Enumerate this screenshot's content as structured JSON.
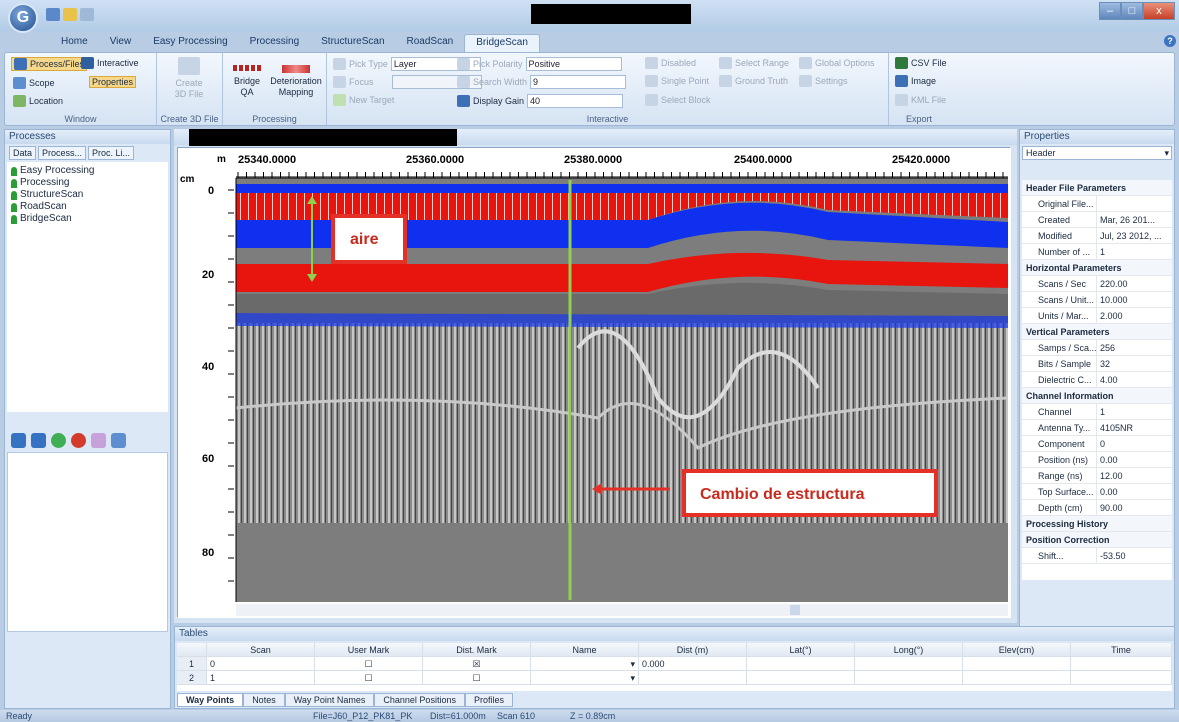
{
  "titlebar": {
    "app_icon": "G",
    "win_min": "–",
    "win_max": "□",
    "win_close": "x"
  },
  "ribbon_tabs": [
    "Home",
    "View",
    "Easy Processing",
    "Processing",
    "StructureScan",
    "RoadScan",
    "BridgeScan"
  ],
  "help": "?",
  "window_group": {
    "label": "Window",
    "process_files": "Process/Files",
    "interactive": "Interactive",
    "scope": "Scope",
    "properties": "Properties",
    "location": "Location"
  },
  "create3d_group": {
    "label": "Create 3D File",
    "button": "Create\n3D File"
  },
  "processing_group": {
    "label": "Processing",
    "bridge_qa": "Bridge\nQA",
    "deterioration": "Deterioration\nMapping"
  },
  "interactive_group": {
    "label": "Interactive",
    "pick_type": "Pick Type",
    "pick_type_val": "Layer",
    "focus": "Focus",
    "new_target": "New Target",
    "pick_polarity": "Pick Polarity",
    "pick_polarity_val": "Positive",
    "search_width": "Search Width",
    "search_width_val": "9",
    "display_gain": "Display Gain",
    "display_gain_val": "40",
    "disabled": "Disabled",
    "single_point": "Single Point",
    "select_block": "Select Block",
    "select_range": "Select Range",
    "ground_truth": "Ground Truth",
    "global_options": "Global Options",
    "settings": "Settings"
  },
  "export_group": {
    "label": "Export",
    "csv": "CSV File",
    "image": "Image",
    "kml": "KML File"
  },
  "processes_panel": {
    "title": "Processes",
    "tabs": [
      "Data",
      "Process...",
      "Proc. Li..."
    ],
    "tree": [
      "Easy Processing",
      "Processing",
      "StructureScan",
      "RoadScan",
      "BridgeScan"
    ]
  },
  "radargram": {
    "x_unit": "m",
    "y_unit": "cm",
    "x_ticks": [
      "25340.0000",
      "25360.0000",
      "25380.0000",
      "25400.0000",
      "25420.0000"
    ],
    "y_ticks": [
      "0",
      "20",
      "40",
      "60",
      "80"
    ],
    "annotation_air": "aire",
    "annotation_change": "Cambio de estructura",
    "colors": {
      "red": "#e8150f",
      "blue": "#1030f0",
      "green": "#8fd14f",
      "box": "#e53027"
    }
  },
  "properties_panel": {
    "title": "Properties",
    "selector": "Header",
    "sections": [
      {
        "title": "Header File Parameters",
        "rows": [
          [
            "Original File...",
            ""
          ],
          [
            "Created",
            "Mar, 26 201..."
          ],
          [
            "Modified",
            "Jul, 23 2012, ..."
          ],
          [
            "Number of ...",
            "1"
          ]
        ]
      },
      {
        "title": "Horizontal Parameters",
        "rows": [
          [
            "Scans / Sec",
            "220.00"
          ],
          [
            "Scans / Unit...",
            "10.000"
          ],
          [
            "Units / Mar...",
            "2.000"
          ]
        ]
      },
      {
        "title": "Vertical Parameters",
        "rows": [
          [
            "Samps / Sca...",
            "256"
          ],
          [
            "Bits / Sample",
            "32"
          ],
          [
            "Dielectric C...",
            "4.00"
          ]
        ]
      },
      {
        "title": "Channel Information",
        "rows": [
          [
            "Channel",
            "1"
          ],
          [
            "Antenna Ty...",
            "4105NR"
          ],
          [
            "Component",
            "0"
          ],
          [
            "Position (ns)",
            "0.00"
          ],
          [
            "Range (ns)",
            "12.00"
          ],
          [
            "Top Surface...",
            "0.00"
          ],
          [
            "Depth (cm)",
            "90.00"
          ]
        ]
      },
      {
        "title": "Processing History",
        "rows": []
      },
      {
        "title": "Position Correction",
        "rows": [
          [
            "Shift...",
            "-53.50"
          ]
        ]
      }
    ]
  },
  "tables": {
    "title": "Tables",
    "columns": [
      "Scan",
      "User Mark",
      "Dist. Mark",
      "Name",
      "Dist (m)",
      "Lat(°)",
      "Long(°)",
      "Elev(cm)",
      "Time"
    ],
    "rows": [
      {
        "n": "1",
        "scan": "0",
        "dist": "0.000",
        "dist_mark": "☒"
      },
      {
        "n": "2",
        "scan": "1",
        "dist": "",
        "dist_mark": "☐"
      }
    ],
    "sheet_tabs": [
      "Way Points",
      "Notes",
      "Way Point Names",
      "Channel Positions",
      "Profiles"
    ]
  },
  "status": {
    "left": "Ready",
    "file": "File=J60_P12_PK81_PK",
    "dist": "Dist=61.000m",
    "scan": "Scan 610",
    "z": "Z = 0.89cm"
  }
}
